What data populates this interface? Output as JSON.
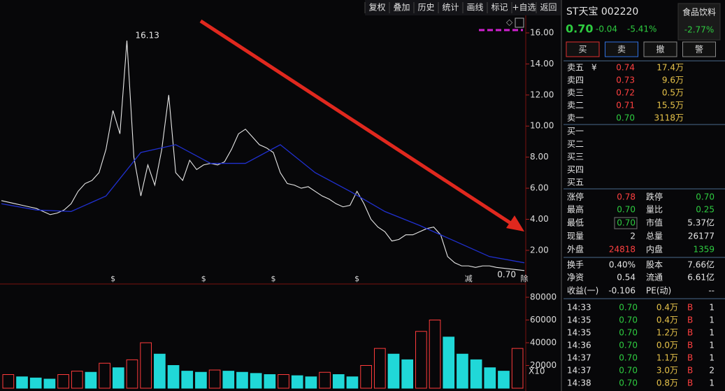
{
  "toolbar": [
    "复权",
    "叠加",
    "历史",
    "统计",
    "画线",
    "标记",
    "+自选",
    "返回"
  ],
  "quote": {
    "name": "ST天宝 002220",
    "sector": "食品饮料",
    "price": "0.70",
    "change": "-0.04",
    "pct": "-5.41%",
    "sector_pct": "-2.77%"
  },
  "actions": [
    "买",
    "卖",
    "撤",
    "警"
  ],
  "order_book": {
    "currency": "¥",
    "asks": [
      {
        "label": "卖五",
        "price": "0.74",
        "volume": "17.4万"
      },
      {
        "label": "卖四",
        "price": "0.73",
        "volume": "9.6万"
      },
      {
        "label": "卖三",
        "price": "0.72",
        "volume": "0.5万"
      },
      {
        "label": "卖二",
        "price": "0.71",
        "volume": "15.5万"
      },
      {
        "label": "卖一",
        "price": "0.70",
        "volume": "3118万"
      }
    ],
    "bids": [
      "买一",
      "买二",
      "买三",
      "买四",
      "买五"
    ]
  },
  "stats": [
    [
      "涨停",
      "0.78",
      "跌停",
      "0.70"
    ],
    [
      "最高",
      "0.70",
      "量比",
      "0.25"
    ],
    [
      "最低",
      "0.70",
      "市值",
      "5.37亿"
    ],
    [
      "现量",
      "2",
      "总量",
      "26177"
    ],
    [
      "外盘",
      "24818",
      "内盘",
      "1359"
    ],
    [
      "换手",
      "0.40%",
      "股本",
      "7.66亿"
    ],
    [
      "净资",
      "0.54",
      "流通",
      "6.61亿"
    ],
    [
      "收益(一)",
      "-0.106",
      "PE(动)",
      "--"
    ]
  ],
  "trades": [
    [
      "14:33",
      "0.70",
      "0.4万",
      "B",
      "1"
    ],
    [
      "14:35",
      "0.70",
      "0.4万",
      "B",
      "1"
    ],
    [
      "14:35",
      "0.70",
      "1.2万",
      "B",
      "1"
    ],
    [
      "14:36",
      "0.70",
      "0.0万",
      "B",
      "1"
    ],
    [
      "14:37",
      "0.70",
      "1.1万",
      "B",
      "1"
    ],
    [
      "14:37",
      "0.70",
      "3.0万",
      "B",
      "2"
    ],
    [
      "14:38",
      "0.70",
      "0.8万",
      "B",
      "1"
    ]
  ],
  "price_chart": {
    "type": "line",
    "ylim": [
      -0.12,
      16.99
    ],
    "yticks": [
      {
        "value": 2,
        "label": "2.00"
      },
      {
        "value": 4,
        "label": "4.00"
      },
      {
        "value": 6,
        "label": "6.00"
      },
      {
        "value": 8,
        "label": "8.00"
      },
      {
        "value": 10,
        "label": "10.00"
      },
      {
        "value": 12,
        "label": "12.00"
      },
      {
        "value": 14,
        "label": "14.00"
      },
      {
        "value": 16,
        "label": "16.00"
      }
    ],
    "series": [
      {
        "color": "#e8e8e8",
        "values": [
          5.2,
          5.1,
          5.0,
          4.9,
          4.8,
          4.7,
          4.5,
          4.3,
          4.4,
          4.6,
          5.0,
          5.8,
          6.3,
          6.5,
          7.0,
          8.5,
          11.0,
          9.5,
          15.5,
          8.0,
          5.5,
          7.5,
          6.2,
          8.5,
          12.0,
          7.0,
          6.5,
          7.8,
          7.2,
          7.5,
          7.6,
          7.5,
          7.7,
          8.5,
          9.5,
          9.8,
          9.3,
          8.8,
          8.6,
          8.3,
          7.0,
          6.3,
          6.2,
          6.0,
          6.1,
          5.8,
          5.5,
          5.3,
          5.0,
          4.8,
          4.9,
          5.8,
          5.0,
          4.0,
          3.5,
          3.2,
          2.6,
          2.7,
          3.0,
          3.0,
          3.2,
          3.4,
          3.5,
          3.0,
          1.6,
          1.2,
          1.0,
          1.0,
          0.9,
          1.0,
          1.0,
          0.9,
          0.85,
          0.8,
          0.75,
          0.7
        ]
      },
      {
        "color": "#2030d0",
        "values": [
          5.0,
          4.6,
          4.5,
          5.5,
          8.3,
          8.8,
          7.6,
          7.6,
          8.8,
          7.0,
          5.8,
          4.5,
          3.6,
          2.6,
          1.6,
          1.2
        ]
      }
    ],
    "high_label": "16.13",
    "last_label": "0.70",
    "events": [
      {
        "index": 16,
        "label": "$"
      },
      {
        "index": 29,
        "label": "$"
      },
      {
        "index": 39,
        "label": "$"
      },
      {
        "index": 51,
        "label": "$"
      },
      {
        "index": 67,
        "label": "减"
      },
      {
        "index": 75,
        "label": "除"
      }
    ]
  },
  "volume_chart": {
    "type": "bar",
    "ylim": [
      0,
      88000
    ],
    "yticks": [
      20000,
      40000,
      60000,
      80000
    ],
    "unit_label": "X10",
    "up_color": "#ff3b3b",
    "down_color": "#20d8d8",
    "values": [
      12000,
      10000,
      9000,
      8000,
      12000,
      15000,
      14000,
      22000,
      18000,
      25000,
      40000,
      30000,
      20000,
      15000,
      14000,
      16000,
      15000,
      14000,
      13000,
      12000,
      12000,
      11000,
      10000,
      14000,
      12000,
      10000,
      20000,
      35000,
      30000,
      25000,
      50000,
      60000,
      45000,
      30000,
      25000,
      18000,
      15000,
      35000
    ]
  }
}
